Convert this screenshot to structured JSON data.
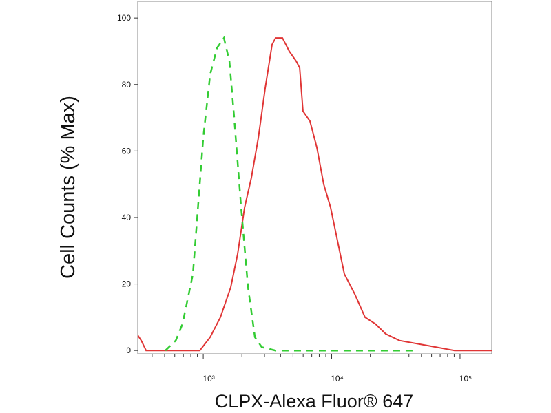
{
  "chart_data": {
    "type": "line",
    "y_label": "Cell Counts (% Max)",
    "x_label": "CLPX-Alexa Fluor® 647",
    "log_x": true,
    "xlim": [
      309,
      176600
    ],
    "ylim": [
      -1,
      105
    ],
    "xticks": [
      {
        "value": 1000,
        "label": "10³"
      },
      {
        "value": 10000,
        "label": "10⁴"
      },
      {
        "value": 100000,
        "label": "10⁵"
      }
    ],
    "xminorticks": [
      400,
      500,
      600,
      700,
      800,
      900,
      2000,
      3000,
      4000,
      5000,
      6000,
      7000,
      8000,
      9000,
      20000,
      30000,
      40000,
      50000,
      60000,
      70000,
      80000,
      90000
    ],
    "yticks": [
      0,
      20,
      40,
      60,
      80,
      100
    ],
    "series": [
      {
        "color": "#e03535",
        "dash": false,
        "x": [
          310,
          329,
          359,
          940,
          1131,
          1361,
          1638,
          1853,
          2098,
          2372,
          2685,
          3038,
          3436,
          3656,
          4140,
          4677,
          5297,
          5636,
          5984,
          6776,
          7674,
          8670,
          9820,
          11110,
          12560,
          15130,
          18200,
          21890,
          26360,
          33730,
          55340,
          90540,
          176600
        ],
        "values": [
          4.5,
          3,
          0,
          0,
          4,
          10,
          19,
          29,
          43,
          52,
          64,
          79,
          92,
          94,
          94,
          90,
          87,
          85,
          72,
          69,
          61,
          50,
          43,
          33,
          23,
          17,
          10,
          8,
          5,
          3,
          1.5,
          0,
          0
        ]
      },
      {
        "color": "#33cc33",
        "dash": true,
        "x": [
          507,
          611,
          690,
          831,
          1000,
          1131,
          1280,
          1448,
          1599,
          1742,
          1972,
          2233,
          2525,
          2857,
          3656,
          12560,
          43150
        ],
        "values": [
          0,
          3,
          8,
          23,
          64,
          83,
          91,
          94,
          87,
          70,
          43,
          19,
          4,
          1,
          0,
          0,
          0
        ]
      }
    ]
  }
}
